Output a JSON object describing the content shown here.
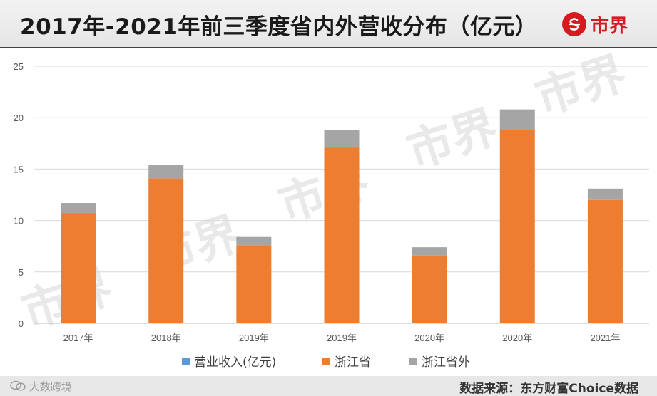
{
  "header": {
    "title": "2017年-2021年前三季度省内外营收分布（亿元）",
    "brand": "市界",
    "brand_color": "#d71920"
  },
  "watermark": "市界",
  "footer": {
    "left_text": "大数跨境",
    "source": "数据来源：东方财富Choice数据"
  },
  "chart_data": {
    "type": "bar",
    "stacked": true,
    "categories": [
      "2017年",
      "2018年",
      "2019年",
      "2019年",
      "2020年",
      "2020年",
      "2021年"
    ],
    "series": [
      {
        "name": "营业收入(亿元)",
        "color": "#5b9bd5",
        "values": [
          0,
          0,
          0,
          0,
          0,
          0,
          0
        ]
      },
      {
        "name": "浙江省",
        "color": "#ed7d31",
        "values": [
          10.7,
          14.1,
          7.6,
          17.1,
          6.6,
          18.8,
          12.0
        ]
      },
      {
        "name": "浙江省外",
        "color": "#a5a5a5",
        "values": [
          1.0,
          1.3,
          0.8,
          1.7,
          0.8,
          2.0,
          1.1
        ]
      }
    ],
    "ylim": [
      0,
      25
    ],
    "yticks": [
      0,
      5,
      10,
      15,
      20,
      25
    ],
    "grid": true,
    "legend_position": "bottom"
  }
}
